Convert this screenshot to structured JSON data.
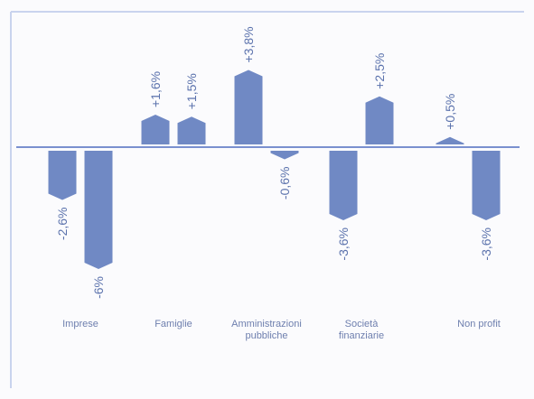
{
  "chart_data": {
    "type": "bar",
    "categories": [
      [
        "Imprese"
      ],
      [
        "Famiglie"
      ],
      [
        "Amministrazioni",
        "pubbliche"
      ],
      [
        "Società",
        "finanziarie"
      ],
      [
        "Non profit"
      ]
    ],
    "series": [
      {
        "values": [
          -2.6,
          1.6,
          3.8,
          -3.6,
          0.5
        ],
        "labels": [
          "-2,6%",
          "+1,6%",
          "+3,8%",
          "-3,6%",
          "+0,5%"
        ]
      },
      {
        "values": [
          -6.0,
          1.5,
          -0.6,
          2.5,
          -3.6
        ],
        "labels": [
          "-6%",
          "+1,5%",
          "-0,6%",
          "+2,5%",
          "-3,6%"
        ]
      }
    ],
    "ylim": [
      -6.2,
      4.0
    ],
    "colors": {
      "bar": "#7089c4",
      "axis": "#7a90cf",
      "text": "#5c73ad"
    }
  }
}
